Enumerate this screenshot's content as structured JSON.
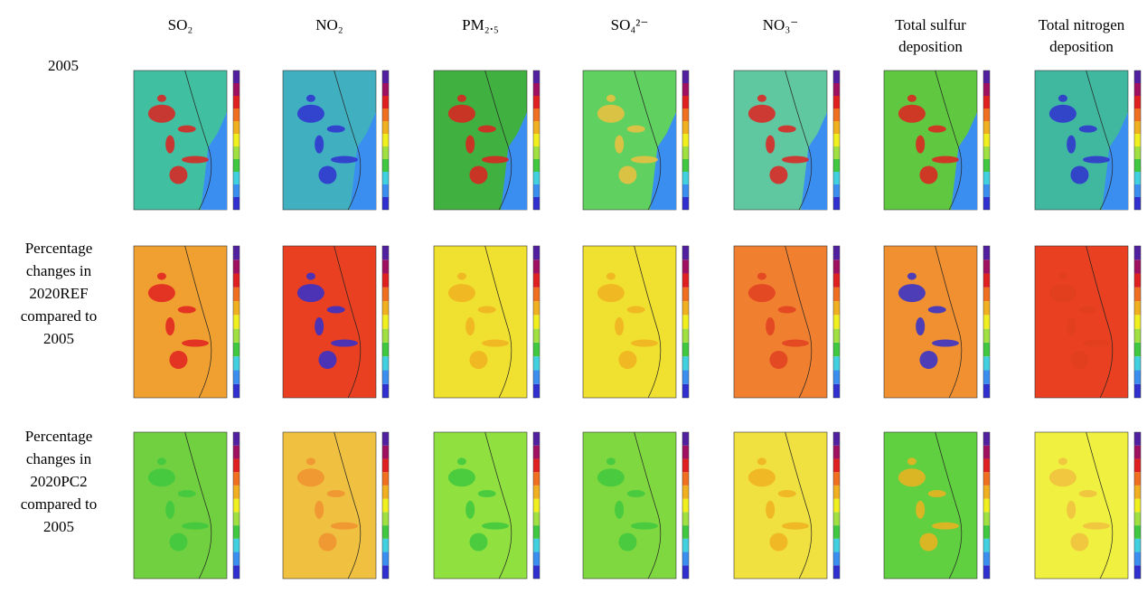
{
  "columns": [
    "SO₂",
    "NO₂",
    "PM₂.₅",
    "SO₄²⁻",
    "NO₃⁻",
    "Total sulfur deposition",
    "Total nitrogen deposition"
  ],
  "rows": [
    "2005",
    "Percentage changes in 2020REF compared to 2005",
    "Percentage changes in 2020PC2 compared to 2005"
  ]
}
